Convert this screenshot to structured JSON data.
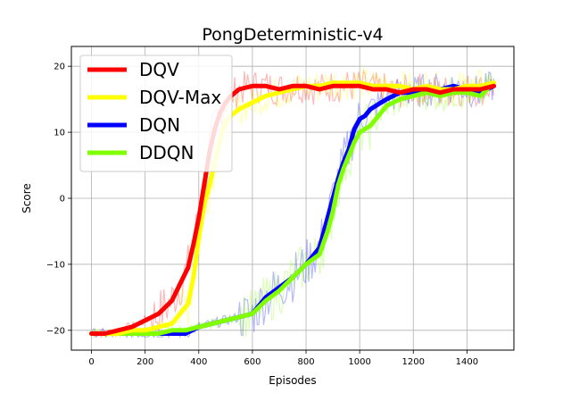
{
  "chart_data": {
    "type": "line",
    "title": "PongDeterministic-v4",
    "xlabel": "Episodes",
    "ylabel": "Score",
    "xlim": [
      -75,
      1575
    ],
    "ylim": [
      -23,
      23
    ],
    "xticks": [
      0,
      200,
      400,
      600,
      800,
      1000,
      1200,
      1400
    ],
    "yticks": [
      -20,
      -10,
      0,
      10,
      20
    ],
    "grid": true,
    "legend_position": "top-left",
    "series": [
      {
        "name": "DQV",
        "color": "#ff0000",
        "x": [
          0,
          50,
          100,
          150,
          200,
          250,
          300,
          330,
          360,
          380,
          400,
          420,
          440,
          460,
          480,
          500,
          520,
          550,
          600,
          650,
          700,
          750,
          800,
          850,
          900,
          950,
          1000,
          1050,
          1100,
          1150,
          1200,
          1250,
          1300,
          1350,
          1400,
          1450,
          1500
        ],
        "y": [
          -20.5,
          -20.5,
          -20,
          -19.5,
          -18.5,
          -17.5,
          -15.5,
          -13,
          -10.5,
          -7,
          -3,
          2,
          7,
          10.5,
          13,
          14.5,
          15.5,
          16.5,
          17,
          17,
          16.5,
          17,
          17,
          16.5,
          17,
          17,
          17,
          16.5,
          16.5,
          16,
          16.5,
          16.5,
          16,
          16.5,
          16.5,
          16.5,
          17
        ]
      },
      {
        "name": "DQV-Max",
        "color": "#ffff00",
        "x": [
          0,
          50,
          100,
          150,
          200,
          250,
          300,
          330,
          360,
          380,
          400,
          420,
          440,
          460,
          480,
          500,
          520,
          550,
          600,
          650,
          700,
          750,
          800,
          850,
          900,
          950,
          1000,
          1050,
          1100,
          1150,
          1200,
          1250,
          1300,
          1350,
          1400,
          1450,
          1500
        ],
        "y": [
          -20.5,
          -20.5,
          -20.5,
          -20,
          -20,
          -19.5,
          -19,
          -17.5,
          -16,
          -12,
          -6,
          -1,
          2,
          5.5,
          9,
          11.5,
          12.5,
          13.5,
          14.5,
          15.5,
          16,
          16.5,
          17,
          17,
          17.5,
          17.5,
          17.5,
          17,
          17,
          17,
          16.5,
          17,
          16.5,
          16.5,
          17,
          17,
          17.5
        ]
      },
      {
        "name": "DQN",
        "color": "#0000ff",
        "x": [
          0,
          50,
          100,
          150,
          200,
          250,
          300,
          350,
          400,
          450,
          500,
          550,
          600,
          650,
          700,
          750,
          800,
          850,
          880,
          900,
          920,
          940,
          960,
          980,
          1000,
          1020,
          1040,
          1060,
          1080,
          1100,
          1150,
          1200,
          1250,
          1300,
          1350,
          1400,
          1450,
          1500
        ],
        "y": [
          -20.5,
          -20.5,
          -20.5,
          -20.5,
          -20.5,
          -20.5,
          -20.5,
          -20.5,
          -19.5,
          -19,
          -18.5,
          -18,
          -17.5,
          -15,
          -13.5,
          -12,
          -10,
          -7.5,
          -3,
          0,
          3,
          5.5,
          7.5,
          10.5,
          12,
          12.5,
          13.5,
          14,
          14.5,
          15,
          16,
          16,
          16.5,
          16.5,
          17,
          16.5,
          16,
          17
        ]
      },
      {
        "name": "DDQN",
        "color": "#80ff00",
        "x": [
          0,
          50,
          100,
          150,
          200,
          250,
          300,
          350,
          400,
          450,
          500,
          550,
          600,
          650,
          700,
          750,
          800,
          850,
          880,
          900,
          920,
          940,
          960,
          980,
          1000,
          1020,
          1040,
          1060,
          1080,
          1100,
          1150,
          1200,
          1250,
          1300,
          1350,
          1400,
          1450,
          1500
        ],
        "y": [
          -20.5,
          -20.5,
          -20.5,
          -20.5,
          -20.5,
          -20.5,
          -20,
          -20,
          -19.5,
          -19,
          -18.5,
          -18,
          -17.5,
          -15.5,
          -14,
          -12,
          -10,
          -8.5,
          -5,
          -2,
          2,
          4.5,
          6.5,
          8.5,
          10,
          10.5,
          11,
          12,
          13,
          14,
          15,
          15.5,
          16,
          15.5,
          16,
          16,
          15.5,
          17.5
        ]
      }
    ]
  }
}
